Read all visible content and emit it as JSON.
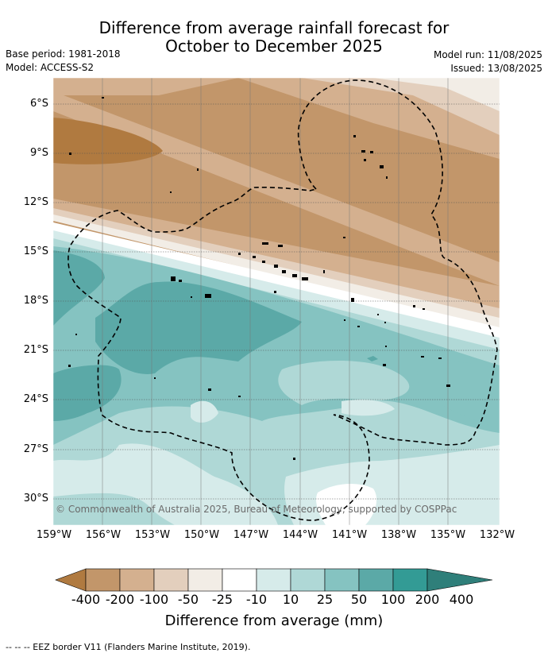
{
  "title_line1": "Difference from average rainfall forecast for",
  "title_line2": "October to December 2025",
  "base_period": "Base period: 1981-2018",
  "model": "Model: ACCESS-S2",
  "model_run": "Model run: 11/08/2025",
  "issued": "Issued: 13/08/2025",
  "credit": "© Commonwealth of Australia 2025, Bureau of Meteorology, supported by COSPPac",
  "lat_labels": [
    "6°S",
    "9°S",
    "12°S",
    "15°S",
    "18°S",
    "21°S",
    "24°S",
    "27°S",
    "30°S"
  ],
  "lon_labels": [
    "159°W",
    "156°W",
    "153°W",
    "150°W",
    "147°W",
    "144°W",
    "141°W",
    "138°W",
    "135°W",
    "132°W"
  ],
  "colorbar": {
    "ticks": [
      "-400",
      "-200",
      "-100",
      "-50",
      "-25",
      "-10",
      "10",
      "25",
      "50",
      "100",
      "200",
      "400"
    ],
    "colors": [
      "#b07a40",
      "#c2966a",
      "#d4b08f",
      "#e3cfbd",
      "#f2ede6",
      "#ffffff",
      "#d6ebea",
      "#afd8d6",
      "#85c3c1",
      "#5ba9a7",
      "#339b95",
      "#2f7f7a"
    ],
    "title": "Difference from average (mm)"
  },
  "legend_footer": "--  --  -- EEZ border V11 (Flanders Marine Institute, 2019)."
}
